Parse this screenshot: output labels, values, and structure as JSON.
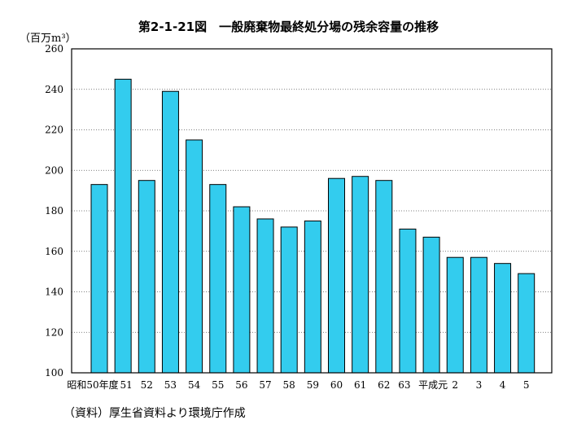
{
  "chart_data": {
    "type": "bar",
    "title": "第2-1-21図　一般廃棄物最終処分場の残余容量の推移",
    "ylabel": "（百万m³）",
    "xlabel": "",
    "source": "（資料）厚生省資料より環境庁作成",
    "categories": [
      "昭和50年度",
      "51",
      "52",
      "53",
      "54",
      "55",
      "56",
      "57",
      "58",
      "59",
      "60",
      "61",
      "62",
      "63",
      "平成元",
      "2",
      "3",
      "4",
      "5"
    ],
    "values": [
      193,
      245,
      195,
      239,
      215,
      193,
      182,
      176,
      172,
      175,
      196,
      197,
      195,
      171,
      167,
      157,
      157,
      154,
      149
    ],
    "ylim": [
      100,
      260
    ],
    "yticks": [
      100,
      120,
      140,
      160,
      180,
      200,
      220,
      240,
      260
    ],
    "grid": "horizontal dotted",
    "legend": "none",
    "bar_color": "#33ccee",
    "edge_color": "#000000"
  }
}
